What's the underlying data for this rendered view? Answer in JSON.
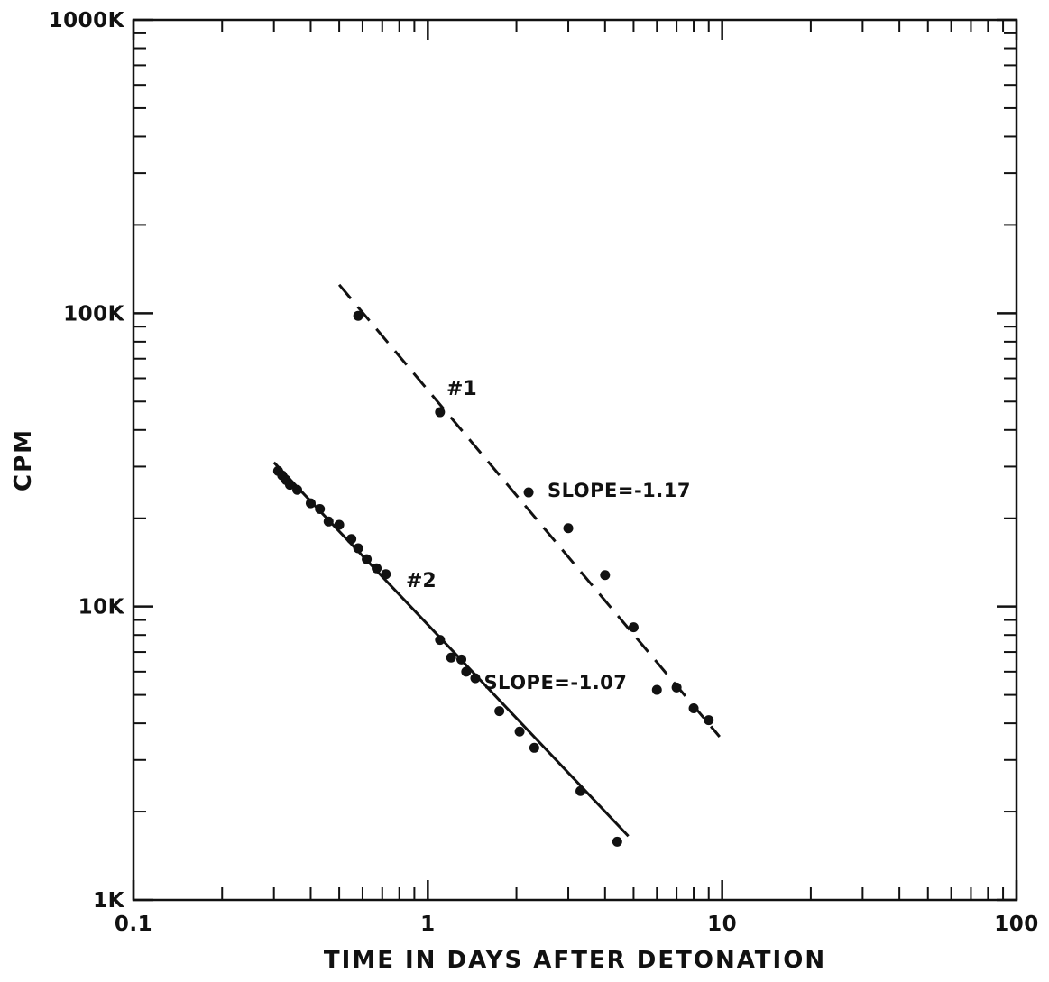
{
  "chart_data": {
    "type": "scatter",
    "title": "",
    "xlabel": "TIME IN DAYS AFTER DETONATION",
    "ylabel": "CPM",
    "x_scale": "log",
    "y_scale": "log",
    "xlim": [
      0.1,
      100
    ],
    "ylim": [
      1000,
      1000000
    ],
    "x_ticks": [
      {
        "value": 0.1,
        "label": "0.1"
      },
      {
        "value": 1,
        "label": "1"
      },
      {
        "value": 10,
        "label": "10"
      },
      {
        "value": 100,
        "label": "100"
      }
    ],
    "y_ticks": [
      {
        "value": 1000,
        "label": "1K"
      },
      {
        "value": 10000,
        "label": "10K"
      },
      {
        "value": 100000,
        "label": "100K"
      },
      {
        "value": 1000000,
        "label": "1000K"
      }
    ],
    "grid": false,
    "legend": "none",
    "series": [
      {
        "name": "#1",
        "line_style": "dashed",
        "fit_line": [
          [
            0.5,
            125000
          ],
          [
            9.8,
            3600
          ]
        ],
        "points": [
          [
            0.58,
            98000
          ],
          [
            1.1,
            46000
          ],
          [
            2.2,
            24500
          ],
          [
            3.0,
            18500
          ],
          [
            4.0,
            12800
          ],
          [
            5.0,
            8500
          ],
          [
            6.0,
            5200
          ],
          [
            7.0,
            5300
          ],
          [
            8.0,
            4500
          ],
          [
            9.0,
            4100
          ]
        ]
      },
      {
        "name": "#2",
        "line_style": "solid",
        "fit_line": [
          [
            0.3,
            31000
          ],
          [
            4.8,
            1650
          ]
        ],
        "points": [
          [
            0.31,
            29000
          ],
          [
            0.32,
            28000
          ],
          [
            0.33,
            27000
          ],
          [
            0.34,
            26000
          ],
          [
            0.36,
            25000
          ],
          [
            0.4,
            22500
          ],
          [
            0.43,
            21500
          ],
          [
            0.46,
            19500
          ],
          [
            0.5,
            19000
          ],
          [
            0.55,
            17000
          ],
          [
            0.58,
            15800
          ],
          [
            0.62,
            14500
          ],
          [
            0.67,
            13500
          ],
          [
            0.72,
            12900
          ],
          [
            1.1,
            7700
          ],
          [
            1.2,
            6700
          ],
          [
            1.3,
            6600
          ],
          [
            1.35,
            6000
          ],
          [
            1.45,
            5700
          ],
          [
            1.75,
            4400
          ],
          [
            2.05,
            3750
          ],
          [
            2.3,
            3300
          ],
          [
            3.3,
            2350
          ],
          [
            4.4,
            1580
          ]
        ]
      }
    ],
    "annotations": [
      {
        "text": "SLOPE=-1.17",
        "x": 2.55,
        "y": 25000
      },
      {
        "text": "SLOPE=-1.07",
        "x": 1.55,
        "y": 5550
      }
    ]
  }
}
